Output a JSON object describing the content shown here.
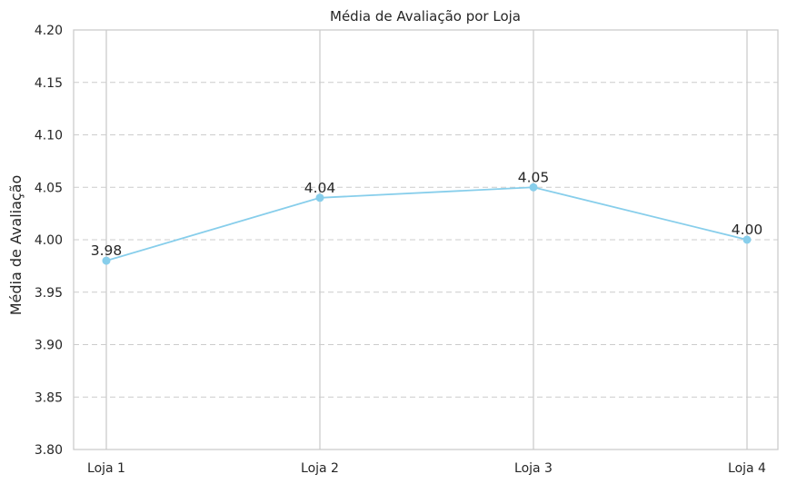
{
  "chart_data": {
    "type": "line",
    "title": "Média de Avaliação por Loja",
    "xlabel": "",
    "ylabel": "Média de Avaliação",
    "categories": [
      "Loja 1",
      "Loja 2",
      "Loja 3",
      "Loja 4"
    ],
    "values": [
      3.98,
      4.04,
      4.05,
      4.0
    ],
    "data_labels": [
      "3.98",
      "4.04",
      "4.05",
      "4.00"
    ],
    "ylim": [
      3.8,
      4.2
    ],
    "yticks": [
      "3.80",
      "3.85",
      "3.90",
      "3.95",
      "4.00",
      "4.05",
      "4.10",
      "4.15",
      "4.20"
    ],
    "ytick_values": [
      3.8,
      3.85,
      3.9,
      3.95,
      4.0,
      4.05,
      4.1,
      4.15,
      4.2
    ],
    "grid": "horizontal dashed, vertical solid at categories",
    "line_color": "#87ceeb",
    "grid_color": "#cccccc",
    "axis_color": "#cccccc",
    "text_color": "#262626"
  }
}
